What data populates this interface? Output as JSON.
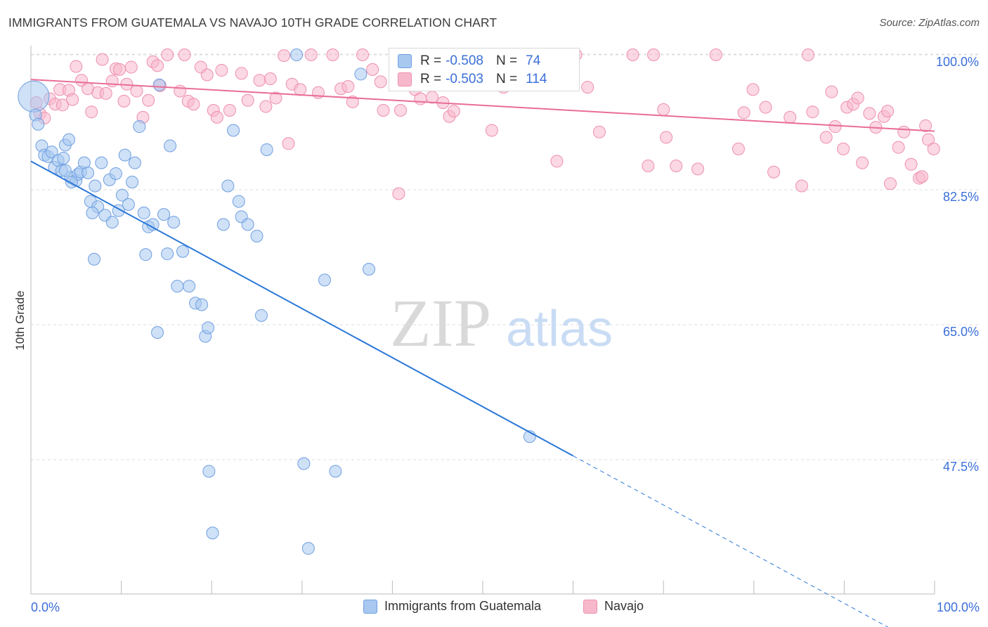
{
  "title": "IMMIGRANTS FROM GUATEMALA VS NAVAJO 10TH GRADE CORRELATION CHART",
  "source": "Source: ZipAtlas.com",
  "watermark": {
    "zip": "ZIP",
    "atlas": "atlas"
  },
  "colors": {
    "blue_fill": "#a8c8f0",
    "blue_stroke": "#6f9fe0",
    "blue_line": "#2b78d8",
    "pink_fill": "#f8b8cc",
    "pink_stroke": "#ee8fae",
    "pink_line": "#e96d97",
    "axis_label": "#3a6fd8",
    "grid": "#dcdcdc"
  },
  "correlation_box": {
    "rows": [
      {
        "r_label": "R =",
        "r_value": "-0.508",
        "n_label": "N =",
        "n_value": "74",
        "series": "blue"
      },
      {
        "r_label": "R =",
        "r_value": "-0.503",
        "n_label": "N =",
        "n_value": "114",
        "series": "pink"
      }
    ]
  },
  "legend": [
    {
      "label": "Immigrants from Guatemala",
      "series": "blue"
    },
    {
      "label": "Navajo",
      "series": "pink"
    }
  ],
  "chart_data": {
    "type": "scatter",
    "title": "IMMIGRANTS FROM GUATEMALA VS NAVAJO 10TH GRADE CORRELATION CHART",
    "xlabel": "",
    "ylabel": "10th Grade",
    "xlim": [
      0,
      100
    ],
    "ylim": [
      35,
      101.5
    ],
    "x_tick_labels": [
      "0.0%",
      "100.0%"
    ],
    "y_ticks": [
      47.5,
      65.0,
      82.5,
      100.0
    ],
    "y_tick_labels": [
      "47.5%",
      "65.0%",
      "82.5%",
      "100.0%"
    ],
    "grid": true,
    "legend_position": "bottom-center",
    "series": [
      {
        "name": "Immigrants from Guatemala",
        "color": "#a8c8f0",
        "trend": {
          "x0": 0,
          "y0": 86.2,
          "x1": 60,
          "y1": 48.0,
          "dashed_to_x": 100,
          "dashed_to_y": 22.5
        },
        "points": [
          [
            0.3,
            94.6
          ],
          [
            0.5,
            92.2
          ],
          [
            0.8,
            91.0
          ],
          [
            1.2,
            88.2
          ],
          [
            1.5,
            87.0
          ],
          [
            1.9,
            86.8
          ],
          [
            2.3,
            87.4
          ],
          [
            2.6,
            85.4
          ],
          [
            3.0,
            86.3
          ],
          [
            3.4,
            85.0
          ],
          [
            3.6,
            86.6
          ],
          [
            3.8,
            88.3
          ],
          [
            4.2,
            89.0
          ],
          [
            4.4,
            84.1
          ],
          [
            5.0,
            83.7
          ],
          [
            5.2,
            84.5
          ],
          [
            5.5,
            84.8
          ],
          [
            5.9,
            86.0
          ],
          [
            6.3,
            84.7
          ],
          [
            6.6,
            81.0
          ],
          [
            7.1,
            83.0
          ],
          [
            7.4,
            80.3
          ],
          [
            7.8,
            86.0
          ],
          [
            8.2,
            79.2
          ],
          [
            8.7,
            83.8
          ],
          [
            9.0,
            78.3
          ],
          [
            9.4,
            84.6
          ],
          [
            9.7,
            79.8
          ],
          [
            10.1,
            81.8
          ],
          [
            10.4,
            87.0
          ],
          [
            10.8,
            80.6
          ],
          [
            11.2,
            83.5
          ],
          [
            11.5,
            86.0
          ],
          [
            12.0,
            90.7
          ],
          [
            12.7,
            74.1
          ],
          [
            13.0,
            77.7
          ],
          [
            13.5,
            78.0
          ],
          [
            14.2,
            96.1
          ],
          [
            14.7,
            79.3
          ],
          [
            15.1,
            74.2
          ],
          [
            15.4,
            88.2
          ],
          [
            15.8,
            78.3
          ],
          [
            16.2,
            70.0
          ],
          [
            16.8,
            74.5
          ],
          [
            17.5,
            70.0
          ],
          [
            18.2,
            67.8
          ],
          [
            18.9,
            67.6
          ],
          [
            19.3,
            63.5
          ],
          [
            19.7,
            46.0
          ],
          [
            20.1,
            38.0
          ],
          [
            21.3,
            78.0
          ],
          [
            21.8,
            83.0
          ],
          [
            22.4,
            90.2
          ],
          [
            23.0,
            81.0
          ],
          [
            23.3,
            79.0
          ],
          [
            24.0,
            78.0
          ],
          [
            25.0,
            76.5
          ],
          [
            25.5,
            66.2
          ],
          [
            26.1,
            87.7
          ],
          [
            29.4,
            100.0
          ],
          [
            30.2,
            47.0
          ],
          [
            30.7,
            36.0
          ],
          [
            32.5,
            70.8
          ],
          [
            33.7,
            46.0
          ],
          [
            36.5,
            97.5
          ],
          [
            37.4,
            72.2
          ],
          [
            55.2,
            50.5
          ],
          [
            3.8,
            85.0
          ],
          [
            4.5,
            83.5
          ],
          [
            6.8,
            79.5
          ],
          [
            7.0,
            73.5
          ],
          [
            12.5,
            79.5
          ],
          [
            14.0,
            64.0
          ],
          [
            19.6,
            64.6
          ]
        ]
      },
      {
        "name": "Navajo",
        "color": "#f8b8cc",
        "trend": {
          "x0": 0,
          "y0": 96.8,
          "x1": 100,
          "y1": 90.1
        },
        "points": [
          [
            0.6,
            93.8
          ],
          [
            1.0,
            92.4
          ],
          [
            1.5,
            91.8
          ],
          [
            2.1,
            94.3
          ],
          [
            2.7,
            93.6
          ],
          [
            3.2,
            95.5
          ],
          [
            3.5,
            93.5
          ],
          [
            4.2,
            95.4
          ],
          [
            4.6,
            94.2
          ],
          [
            5.0,
            98.5
          ],
          [
            5.6,
            96.7
          ],
          [
            6.3,
            95.6
          ],
          [
            6.7,
            92.6
          ],
          [
            7.4,
            95.1
          ],
          [
            7.9,
            99.4
          ],
          [
            8.3,
            95.0
          ],
          [
            9.0,
            96.6
          ],
          [
            9.4,
            98.2
          ],
          [
            9.8,
            98.1
          ],
          [
            10.3,
            94.0
          ],
          [
            10.6,
            96.2
          ],
          [
            11.1,
            98.4
          ],
          [
            11.7,
            95.3
          ],
          [
            12.4,
            91.9
          ],
          [
            13.0,
            94.1
          ],
          [
            13.5,
            99.1
          ],
          [
            14.0,
            98.6
          ],
          [
            14.3,
            96.0
          ],
          [
            15.1,
            100.0
          ],
          [
            16.5,
            95.3
          ],
          [
            17.0,
            100.0
          ],
          [
            17.4,
            94.0
          ],
          [
            18.0,
            93.6
          ],
          [
            18.8,
            98.4
          ],
          [
            19.5,
            97.4
          ],
          [
            20.2,
            92.8
          ],
          [
            20.6,
            91.9
          ],
          [
            21.1,
            98.0
          ],
          [
            22.0,
            92.8
          ],
          [
            23.3,
            97.6
          ],
          [
            24.0,
            94.1
          ],
          [
            25.3,
            96.7
          ],
          [
            26.0,
            93.3
          ],
          [
            26.5,
            96.9
          ],
          [
            27.1,
            94.4
          ],
          [
            28.0,
            99.9
          ],
          [
            28.5,
            88.5
          ],
          [
            28.9,
            96.2
          ],
          [
            29.8,
            95.5
          ],
          [
            31.0,
            100.0
          ],
          [
            31.8,
            95.1
          ],
          [
            33.4,
            100.0
          ],
          [
            34.3,
            95.6
          ],
          [
            35.1,
            95.9
          ],
          [
            35.6,
            93.9
          ],
          [
            36.7,
            100.0
          ],
          [
            37.8,
            98.1
          ],
          [
            38.7,
            96.5
          ],
          [
            39.0,
            92.8
          ],
          [
            40.7,
            82.0
          ],
          [
            40.9,
            92.8
          ],
          [
            42.5,
            95.5
          ],
          [
            43.1,
            94.3
          ],
          [
            44.4,
            94.5
          ],
          [
            45.6,
            93.8
          ],
          [
            46.3,
            92.0
          ],
          [
            46.8,
            92.7
          ],
          [
            47.8,
            100.0
          ],
          [
            51.0,
            90.2
          ],
          [
            52.3,
            95.8
          ],
          [
            53.8,
            97.8
          ],
          [
            57.0,
            100.0
          ],
          [
            58.2,
            86.2
          ],
          [
            60.3,
            100.0
          ],
          [
            61.6,
            95.8
          ],
          [
            62.9,
            90.0
          ],
          [
            66.6,
            100.0
          ],
          [
            68.3,
            85.6
          ],
          [
            68.9,
            100.0
          ],
          [
            70.0,
            92.9
          ],
          [
            70.3,
            89.3
          ],
          [
            71.4,
            85.6
          ],
          [
            73.8,
            85.2
          ],
          [
            75.8,
            100.0
          ],
          [
            78.3,
            87.8
          ],
          [
            78.9,
            92.5
          ],
          [
            79.9,
            95.5
          ],
          [
            81.3,
            93.2
          ],
          [
            82.2,
            84.8
          ],
          [
            84.0,
            91.9
          ],
          [
            85.3,
            83.0
          ],
          [
            86.0,
            100.0
          ],
          [
            86.5,
            92.6
          ],
          [
            88.0,
            89.3
          ],
          [
            88.6,
            95.2
          ],
          [
            89.0,
            90.7
          ],
          [
            89.9,
            87.8
          ],
          [
            90.3,
            93.2
          ],
          [
            91.0,
            93.6
          ],
          [
            91.5,
            94.4
          ],
          [
            92.0,
            86.0
          ],
          [
            92.8,
            92.4
          ],
          [
            93.5,
            90.6
          ],
          [
            94.4,
            92.0
          ],
          [
            94.8,
            92.7
          ],
          [
            95.1,
            83.3
          ],
          [
            96.0,
            88.0
          ],
          [
            96.6,
            90.0
          ],
          [
            97.4,
            85.8
          ],
          [
            98.3,
            84.0
          ],
          [
            99.3,
            89.0
          ],
          [
            99.9,
            87.8
          ],
          [
            98.6,
            84.2
          ],
          [
            99.0,
            90.8
          ]
        ]
      }
    ]
  }
}
